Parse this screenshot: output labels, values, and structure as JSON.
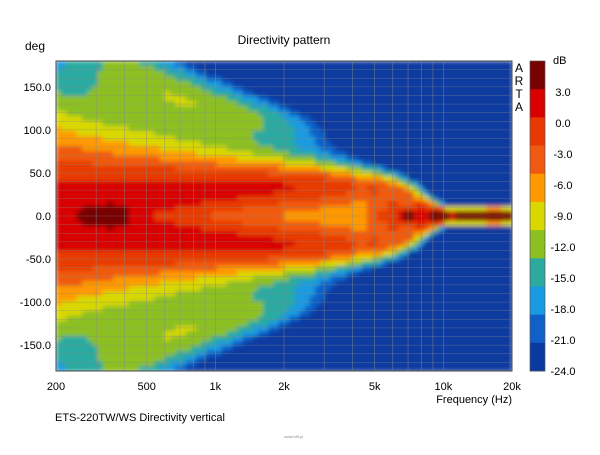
{
  "chart_data": {
    "type": "heatmap",
    "title": "Directivity pattern",
    "xlabel": "Frequency (Hz)",
    "ylabel": "deg",
    "x_scale": "log",
    "xlim": [
      200,
      20000
    ],
    "ylim": [
      180,
      -180
    ],
    "x_ticks": [
      200,
      500,
      1000,
      2000,
      5000,
      10000,
      20000
    ],
    "x_tick_labels": [
      "200",
      "500",
      "1k",
      "2k",
      "5k",
      "10k",
      "20k"
    ],
    "y_ticks": [
      -150,
      -100,
      -50,
      0,
      50,
      100,
      150
    ],
    "y_tick_labels": [
      "-150.0",
      "-100.0",
      "-50.0",
      "0.0",
      "50.0",
      "100.0",
      "150.0"
    ],
    "grid": true,
    "colorbar": {
      "label": "dB",
      "range": [
        -24,
        6
      ],
      "tick_values": [
        3,
        0,
        -3,
        -6,
        -9,
        -12,
        -15,
        -18,
        -21,
        -24
      ],
      "tick_labels": [
        "3.0",
        "0.0",
        "-3.0",
        "-6.0",
        "-9.0",
        "-12.0",
        "-15.0",
        "-18.0",
        "-21.0",
        "-24.0"
      ],
      "colors": [
        "#780000",
        "#d80000",
        "#e83a00",
        "#f05a10",
        "#ff9900",
        "#d8d800",
        "#8cc020",
        "#2caaa0",
        "#1a9ae0",
        "#1060c8",
        "#0a3aa0"
      ]
    },
    "brand_text": "ARTA",
    "caption": "ETS-220TW/WS  Directivity vertical",
    "watermark": "www.hifi.pl"
  }
}
